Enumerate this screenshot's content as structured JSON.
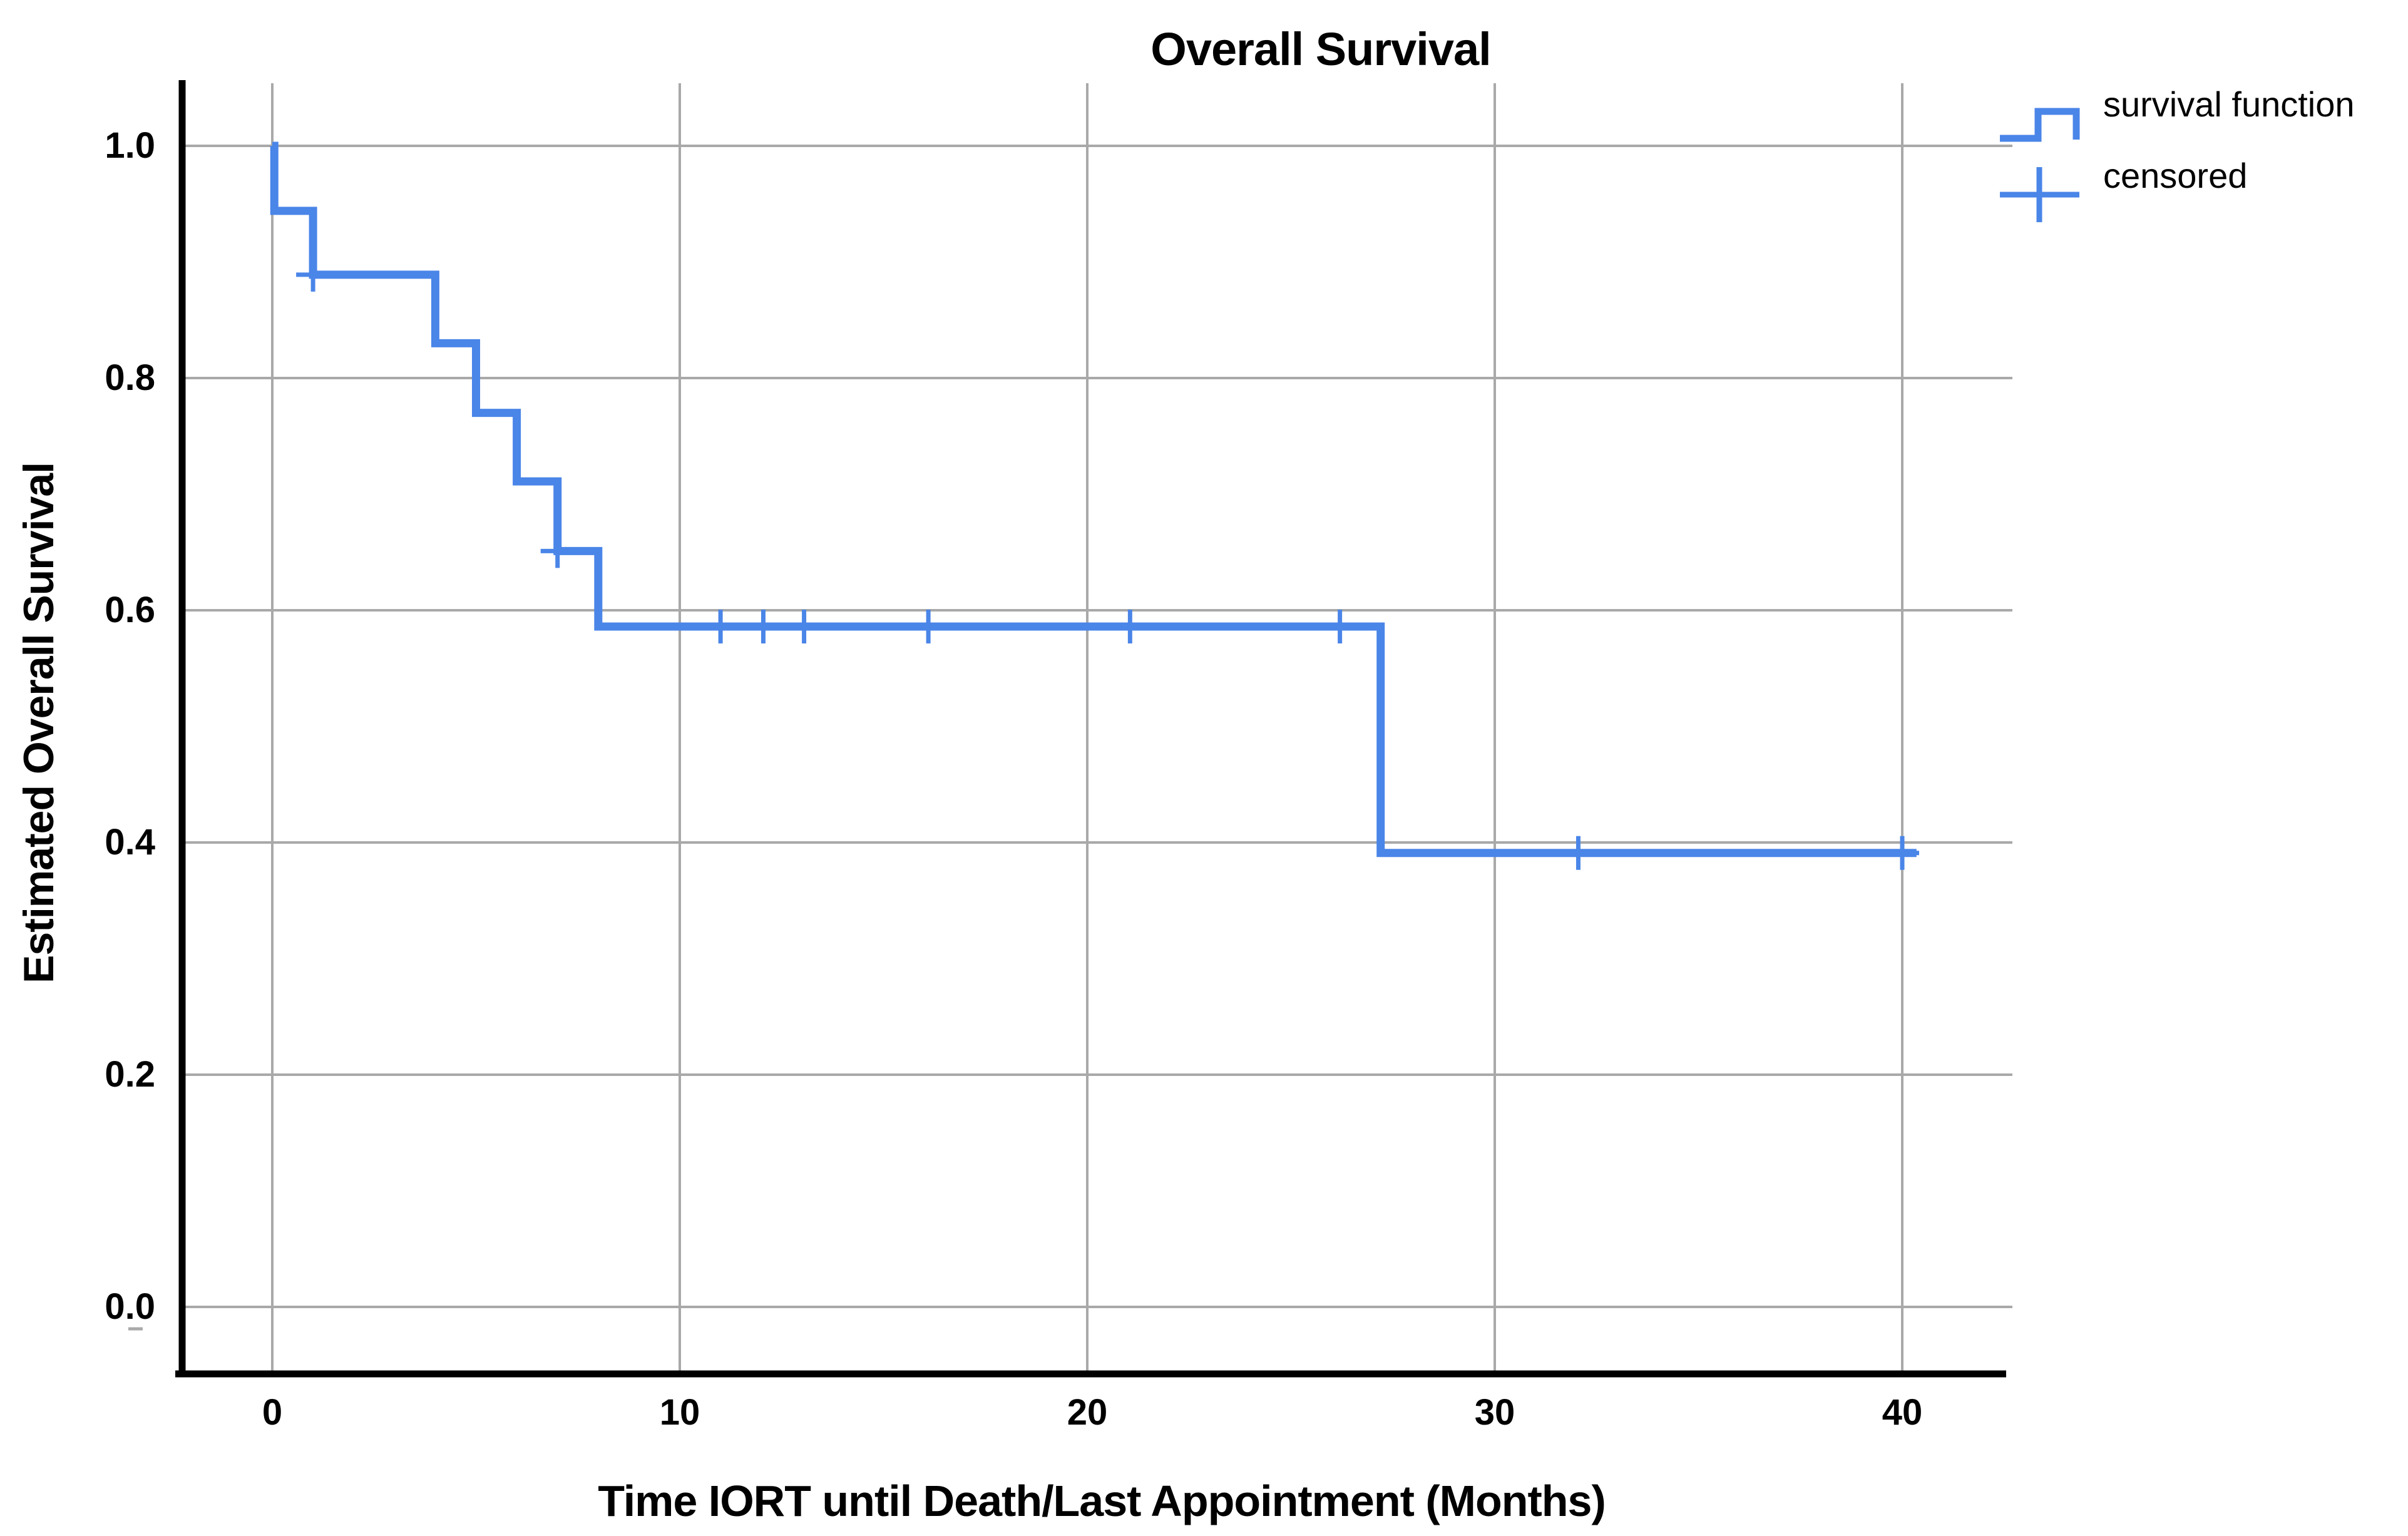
{
  "chart": {
    "title": "Overall Survival",
    "x_axis": {
      "title": "Time IORT until Death/Last Appointment (Months)",
      "tick_labels": [
        "0",
        "10",
        "20",
        "30",
        "40"
      ],
      "tick_values": [
        0,
        10,
        20,
        30,
        40
      ]
    },
    "y_axis": {
      "title": "Estimated Overall Survival",
      "tick_labels": [
        "1.0",
        "0.8",
        "0.6",
        "0.4",
        "0.2",
        "0.0"
      ],
      "tick_values": [
        1.0,
        0.8,
        0.6,
        0.4,
        0.2,
        0.0
      ]
    },
    "legend": [
      {
        "label": "survival function",
        "glyph": "step-line-icon"
      },
      {
        "label": "censored",
        "glyph": "plus-icon"
      }
    ],
    "colors": {
      "curve": "#4a85e8",
      "gridline": "#a9a9a9",
      "axis": "#000000",
      "background": "#ffffff",
      "text": "#000000"
    }
  },
  "chart_data": {
    "type": "line",
    "subtype": "kaplan-meier-step-function",
    "title": "Overall Survival",
    "xlabel": "Time IORT until Death/Last Appointment (Months)",
    "ylabel": "Estimated Overall Survival",
    "xlim": [
      0,
      42.5
    ],
    "ylim": [
      -0.07,
      1.05
    ],
    "grid": true,
    "legend_position": "top-right",
    "series": [
      {
        "name": "survival function",
        "steps": [
          [
            0,
            1.0
          ],
          [
            0.05,
            0.944
          ],
          [
            1,
            0.889
          ],
          [
            4,
            0.83
          ],
          [
            5,
            0.77
          ],
          [
            6,
            0.711
          ],
          [
            7,
            0.651
          ],
          [
            8,
            0.586
          ],
          [
            27.2,
            0.391
          ]
        ],
        "end_time": 40.35
      }
    ],
    "censored_points": [
      [
        1,
        0.889
      ],
      [
        7,
        0.651
      ],
      [
        11,
        0.586
      ],
      [
        12.05,
        0.586
      ],
      [
        13.05,
        0.586
      ],
      [
        16.1,
        0.586
      ],
      [
        21.05,
        0.586
      ],
      [
        26.2,
        0.586
      ],
      [
        32.05,
        0.391
      ],
      [
        40,
        0.391
      ]
    ]
  }
}
